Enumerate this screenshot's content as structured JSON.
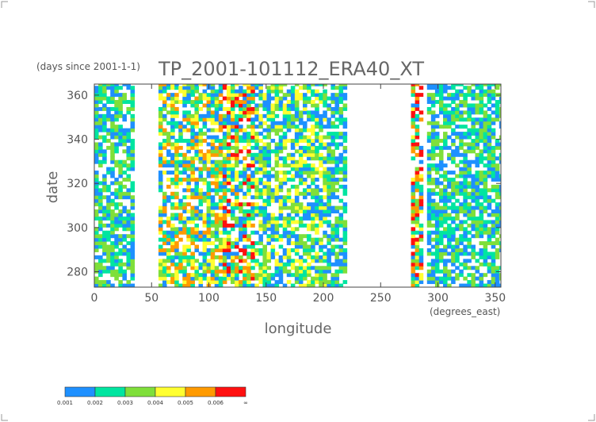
{
  "chart_data": {
    "type": "heatmap",
    "title": "TP_2001-101112_ERA40_XT",
    "y_units_note": "(days since 2001-1-1)",
    "xlabel": "longitude",
    "x_units_note": "(degrees_east)",
    "ylabel": "date",
    "xlim": [
      0,
      355
    ],
    "ylim": [
      273,
      365
    ],
    "x_ticks": [
      0,
      50,
      100,
      150,
      200,
      250,
      300,
      350
    ],
    "y_ticks": [
      280,
      300,
      320,
      340,
      360
    ],
    "colorbar": {
      "tick_labels": [
        "0.001",
        "0.002",
        "0.003",
        "0.004",
        "0.005",
        "0.006",
        "∞"
      ],
      "colors": [
        "#1e90ff",
        "#00e5a0",
        "#7fdf3a",
        "#ffff30",
        "#ff9a00",
        "#ff1010"
      ]
    },
    "bands": [
      {
        "x0": 0,
        "x1": 35,
        "level": 1
      },
      {
        "x0": 55,
        "x1": 110,
        "level": 3
      },
      {
        "x0": 110,
        "x1": 140,
        "level": 4
      },
      {
        "x0": 140,
        "x1": 200,
        "level": 2
      },
      {
        "x0": 200,
        "x1": 220,
        "level": 1
      },
      {
        "x0": 275,
        "x1": 285,
        "level": 4
      },
      {
        "x0": 290,
        "x1": 355,
        "level": 1
      }
    ]
  }
}
